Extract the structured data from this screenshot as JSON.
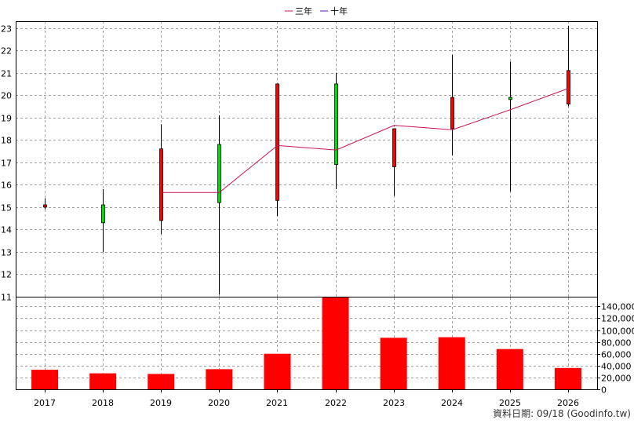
{
  "chart_data": {
    "type": "candlestick",
    "legend": [
      {
        "name": "三年",
        "color": "#c8105a"
      },
      {
        "name": "十年",
        "color": "#6a0dad"
      }
    ],
    "legend_position": "top-center",
    "grid": true,
    "categories": [
      "2017",
      "2018",
      "2019",
      "2020",
      "2021",
      "2022",
      "2023",
      "2024",
      "2025",
      "2026"
    ],
    "price": {
      "ylim": [
        11,
        23.3
      ],
      "yticks": [
        "11",
        "12",
        "13",
        "14",
        "15",
        "16",
        "17",
        "18",
        "19",
        "20",
        "21",
        "22",
        "23"
      ],
      "candles": [
        {
          "open": 15.0,
          "close": 15.1,
          "high": 15.4,
          "low": 14.9,
          "color": "#ff0000"
        },
        {
          "open": 14.3,
          "close": 15.1,
          "high": 15.8,
          "low": 13.0,
          "color": "#00dd00"
        },
        {
          "open": 14.4,
          "close": 17.6,
          "high": 18.7,
          "low": 13.8,
          "color": "#ff0000"
        },
        {
          "open": 15.2,
          "close": 17.8,
          "high": 19.1,
          "low": 11.1,
          "color": "#00dd00"
        },
        {
          "open": 15.3,
          "close": 20.5,
          "high": 20.5,
          "low": 14.6,
          "color": "#ff0000"
        },
        {
          "open": 16.9,
          "close": 20.5,
          "high": 21.0,
          "low": 15.8,
          "color": "#00dd00"
        },
        {
          "open": 16.8,
          "close": 18.5,
          "high": 18.5,
          "low": 15.5,
          "color": "#ff0000"
        },
        {
          "open": 18.5,
          "close": 19.9,
          "high": 21.8,
          "low": 17.3,
          "color": "#ff0000"
        },
        {
          "open": 19.8,
          "close": 19.9,
          "high": 21.5,
          "low": 15.7,
          "color": "#00dd00"
        },
        {
          "open": 19.6,
          "close": 21.1,
          "high": 23.1,
          "low": 19.5,
          "color": "#ff0000"
        }
      ],
      "three_year_line": [
        null,
        null,
        15.65,
        15.65,
        17.75,
        17.55,
        18.65,
        18.45,
        19.35,
        20.3
      ]
    },
    "volume": {
      "ylim": [
        0,
        155000
      ],
      "yticks": [
        "0",
        "20,000",
        "40,000",
        "60,000",
        "80,000",
        "100,000",
        "120,000",
        "140,000"
      ],
      "values": [
        33000,
        27000,
        26000,
        34000,
        60000,
        158000,
        87000,
        88000,
        68000,
        36000
      ],
      "color": "#ff0000"
    },
    "footer": "資料日期: 09/18  (Goodinfo.tw)"
  }
}
